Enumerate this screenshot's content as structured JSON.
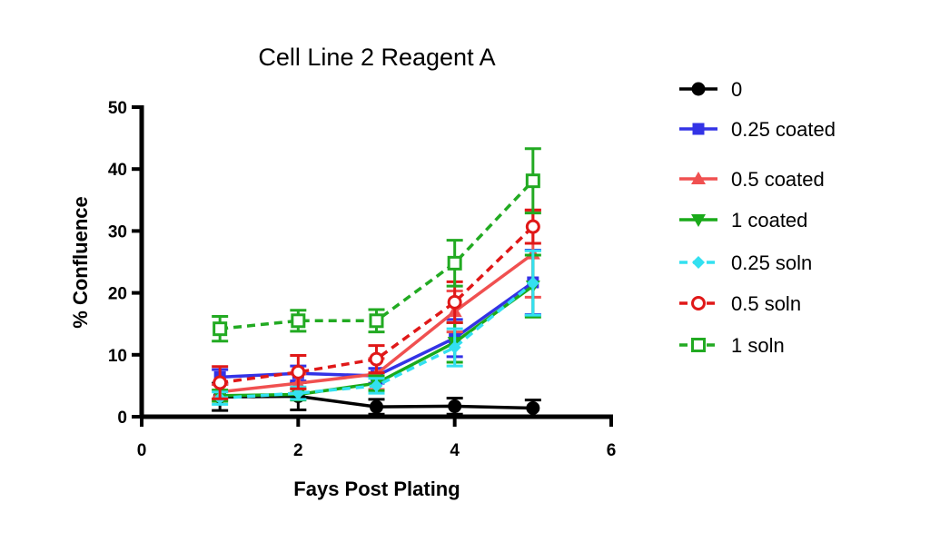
{
  "chart_data": {
    "type": "line",
    "title": "Cell Line 2 Reagent A",
    "xlabel": "Fays Post Plating",
    "ylabel": "% Confluence",
    "xlim": [
      0,
      6
    ],
    "ylim": [
      0,
      50
    ],
    "xticks": [
      0,
      2,
      4,
      6
    ],
    "yticks": [
      0,
      10,
      20,
      30,
      40,
      50
    ],
    "grid": false,
    "legend_position": "right",
    "x": [
      1,
      2,
      3,
      4,
      5
    ],
    "series": [
      {
        "name": "0",
        "color": "#000000",
        "marker": "circle-filled",
        "dash": "solid",
        "values": [
          3.2,
          3.3,
          1.6,
          1.7,
          1.4
        ],
        "errors": [
          2.2,
          2.2,
          1.2,
          1.3,
          1.3
        ]
      },
      {
        "name": "0.25 coated",
        "color": "#3333e6",
        "marker": "square-filled",
        "dash": "solid",
        "values": [
          6.4,
          7.0,
          6.6,
          12.7,
          21.7
        ],
        "errors": [
          1.2,
          1.2,
          1.2,
          3.0,
          5.2
        ]
      },
      {
        "name": "0.5 coated",
        "color": "#f05050",
        "marker": "triangle-up-filled",
        "dash": "solid",
        "values": [
          4.0,
          5.4,
          6.9,
          17.0,
          26.3
        ],
        "errors": [
          1.2,
          1.5,
          2.5,
          3.3,
          7.0
        ]
      },
      {
        "name": "1 coated",
        "color": "#1aaa1a",
        "marker": "triangle-down-filled",
        "dash": "solid",
        "values": [
          3.4,
          3.6,
          5.4,
          12.0,
          21.1
        ],
        "errors": [
          0.9,
          0.9,
          1.2,
          3.2,
          5.0
        ]
      },
      {
        "name": "0.25 soln",
        "color": "#33e0f0",
        "marker": "diamond-filled",
        "dash": "dashed",
        "values": [
          3.0,
          3.8,
          5.0,
          11.2,
          21.6
        ],
        "errors": [
          1.0,
          1.0,
          1.2,
          3.0,
          5.2
        ]
      },
      {
        "name": "0.5 soln",
        "color": "#e01818",
        "marker": "circle-open",
        "dash": "dashed",
        "values": [
          5.5,
          7.2,
          9.3,
          18.5,
          30.7
        ],
        "errors": [
          2.6,
          2.7,
          2.2,
          3.3,
          2.7
        ]
      },
      {
        "name": "1 soln",
        "color": "#22aa22",
        "marker": "square-open",
        "dash": "dashed",
        "values": [
          14.2,
          15.5,
          15.5,
          24.8,
          38.1
        ],
        "errors": [
          2.0,
          1.7,
          1.8,
          3.7,
          5.2
        ]
      }
    ]
  }
}
